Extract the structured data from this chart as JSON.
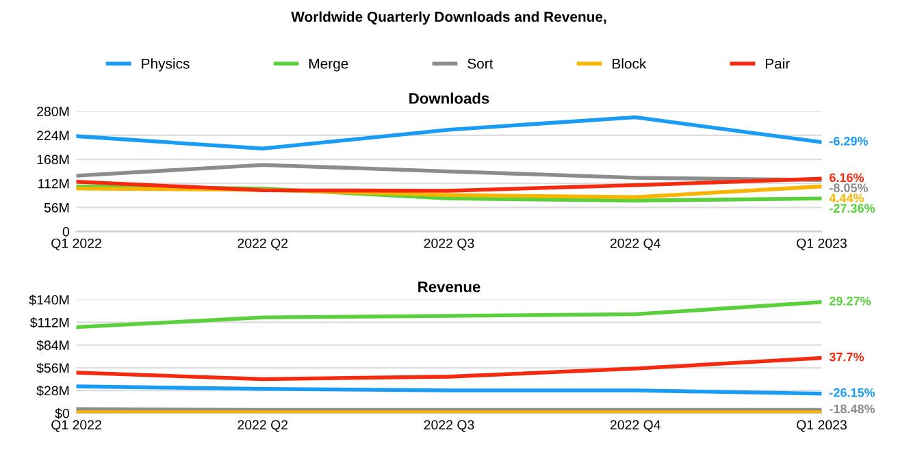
{
  "chart_data": [
    {
      "type": "line",
      "title": "Worldwide Quarterly Downloads and Revenue,",
      "subtitle": "Downloads",
      "legend": "top",
      "grid": "y",
      "marker": "none",
      "line_style": "solid",
      "categories": [
        "Q1 2022",
        "2022 Q2",
        "2022 Q3",
        "2022 Q4",
        "Q1 2023"
      ],
      "series": [
        {
          "name": "Physics",
          "color": "#1a9cf5",
          "values": [
            222,
            193,
            237,
            266,
            208
          ]
        },
        {
          "name": "Merge",
          "color": "#5ad13c",
          "values": [
            105,
            100,
            77,
            72,
            77
          ]
        },
        {
          "name": "Sort",
          "color": "#8c8c8c",
          "values": [
            130,
            155,
            140,
            125,
            120
          ]
        },
        {
          "name": "Block",
          "color": "#f7b500",
          "values": [
            100,
            97,
            85,
            80,
            105
          ]
        },
        {
          "name": "Pair",
          "color": "#f52a0f",
          "values": [
            116,
            96,
            95,
            108,
            123
          ]
        }
      ],
      "ylim": [
        0,
        280
      ],
      "yticks": [
        0,
        {
          "value": 56,
          "label": "56M"
        },
        {
          "value": 112,
          "label": "112M"
        },
        {
          "value": 168,
          "label": "168M"
        },
        {
          "value": 224,
          "label": "224M"
        },
        {
          "value": 280,
          "label": "280M"
        }
      ],
      "annotations": [
        {
          "text": "-6.29%",
          "x": "Q1 2023",
          "y": 208
        },
        {
          "text": "6.16%",
          "x": "Q1 2023",
          "y": 123
        },
        {
          "text": "-8.05%",
          "x": "Q1 2023",
          "y": 120
        },
        {
          "text": "4.44%",
          "x": "Q1 2023",
          "y": 105
        },
        {
          "text": "-27.36%",
          "x": "Q1 2023",
          "y": 77
        }
      ]
    },
    {
      "type": "line",
      "title": "Revenue",
      "grid": "y",
      "marker": "none",
      "line_style": "solid",
      "categories": [
        "Q1 2022",
        "2022 Q2",
        "2022 Q3",
        "2022 Q4",
        "Q1 2023"
      ],
      "series": [
        {
          "color": "#1a9cf5",
          "values": [
            33,
            30,
            28,
            28,
            24
          ]
        },
        {
          "color": "#5ad13c",
          "values": [
            106,
            118,
            120,
            122,
            137
          ]
        },
        {
          "color": "#8c8c8c",
          "values": [
            5,
            4,
            4,
            4,
            4
          ]
        },
        {
          "color": "#f7b500",
          "values": [
            1,
            1,
            1,
            1,
            1
          ]
        },
        {
          "color": "#f52a0f",
          "values": [
            50,
            42,
            45,
            55,
            68
          ]
        }
      ],
      "ylim": [
        0,
        140
      ],
      "yticks": [
        {
          "value": 0,
          "label": "$0"
        },
        {
          "value": 28,
          "label": "$28M"
        },
        {
          "value": 56,
          "label": "$56M"
        },
        {
          "value": 84,
          "label": "$84M"
        },
        {
          "value": 112,
          "label": "$112M"
        },
        {
          "value": 140,
          "label": "$140M"
        }
      ],
      "annotations": [
        {
          "text": "29.27%",
          "x": "Q1 2023",
          "y": 137
        },
        {
          "text": "37.7%",
          "x": "Q1 2023",
          "y": 68
        },
        {
          "text": "-26.15%",
          "x": "Q1 2023",
          "y": 24
        },
        {
          "text": "-18.48%",
          "x": "Q1 2023",
          "y": 4
        }
      ]
    }
  ]
}
